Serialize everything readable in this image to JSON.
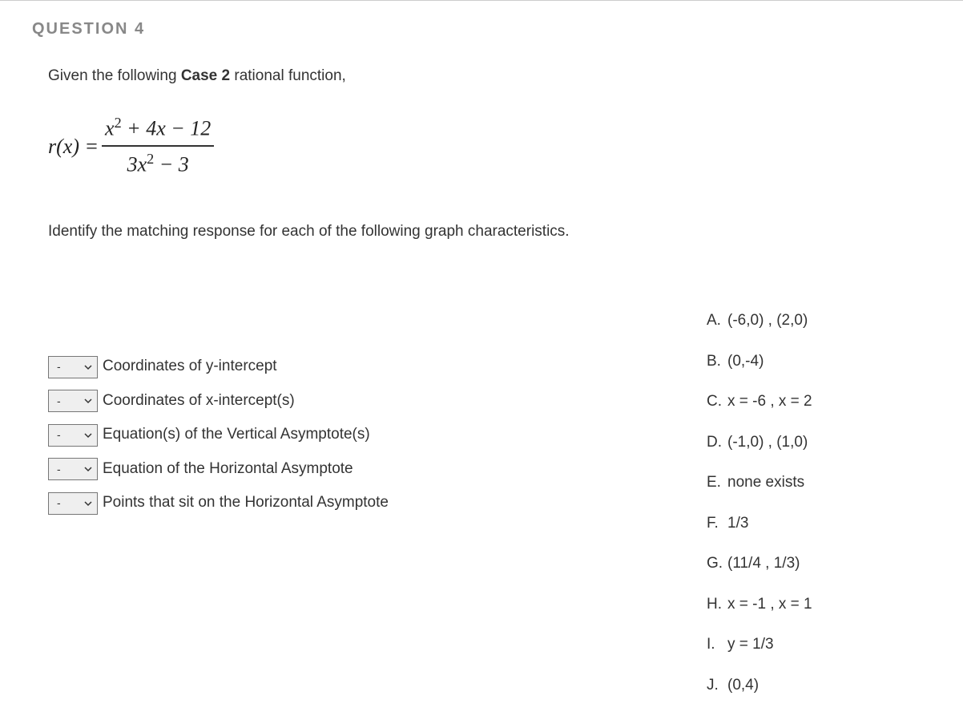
{
  "header": "QUESTION 4",
  "intro_pre": "Given the following ",
  "intro_bold": "Case 2",
  "intro_post": " rational function,",
  "formula": {
    "lhs": "r(x) =",
    "numerator_html": "x<sup>2</sup> + 4x − 12",
    "denominator_html": "3x<sup>2</sup> − 3"
  },
  "instruction": "Identify the matching response for each of the following graph characteristics.",
  "matches": [
    {
      "selected": "-",
      "label": "Coordinates of y-intercept"
    },
    {
      "selected": "-",
      "label": "Coordinates of x-intercept(s)"
    },
    {
      "selected": "-",
      "label": "Equation(s) of the Vertical Asymptote(s)"
    },
    {
      "selected": "-",
      "label": "Equation of the Horizontal Asymptote"
    },
    {
      "selected": "-",
      "label": "Points that sit on the Horizontal Asymptote"
    }
  ],
  "answers": [
    {
      "letter": "A.",
      "text": "(-6,0) , (2,0)"
    },
    {
      "letter": "B.",
      "text": "(0,-4)"
    },
    {
      "letter": "C.",
      "text": "x = -6 , x = 2"
    },
    {
      "letter": "D.",
      "text": "(-1,0) , (1,0)"
    },
    {
      "letter": "E.",
      "text": "none exists"
    },
    {
      "letter": "F.",
      "text": "1/3"
    },
    {
      "letter": "G.",
      "text": "(11/4 , 1/3)"
    },
    {
      "letter": "H.",
      "text": "x = -1 , x = 1"
    },
    {
      "letter": "I.",
      "text": "y = 1/3"
    },
    {
      "letter": "J.",
      "text": "(0,4)"
    }
  ],
  "colors": {
    "header_text": "#888888",
    "body_text": "#333333",
    "border": "#767676",
    "dropdown_bg": "#efefef"
  }
}
